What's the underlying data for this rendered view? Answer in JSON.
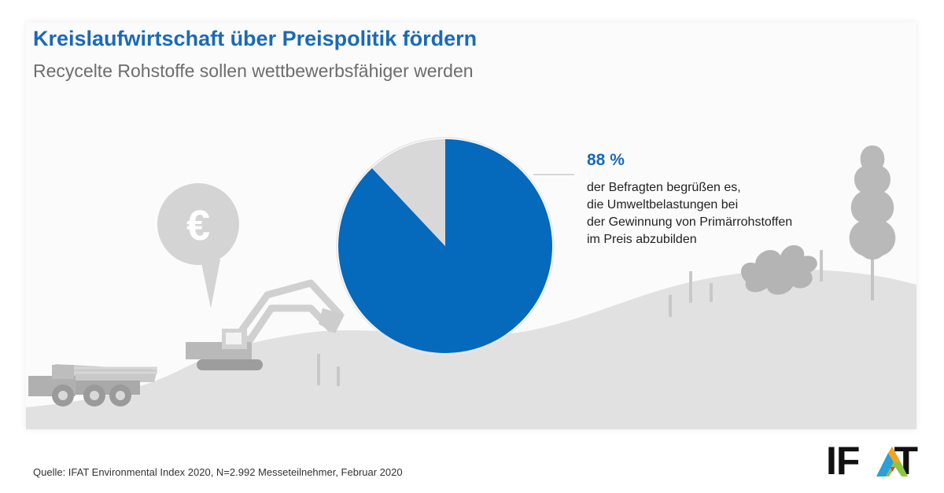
{
  "title": "Kreislaufwirtschaft über Preispolitik fördern",
  "subtitle": "Recycelte Rohstoffe sollen wettbewerbsfähiger werden",
  "chart_data": {
    "type": "pie",
    "title": "Kreislaufwirtschaft über Preispolitik fördern",
    "subtitle": "Recycelte Rohstoffe sollen wettbewerbsfähiger werden",
    "values": [
      88,
      12
    ],
    "colors": [
      "#0569bc",
      "#d8d8d9"
    ],
    "annotation": {
      "value_label": "88 %",
      "lines": [
        "der Befragten begrüßen es,",
        "die Umweltbelastungen bei",
        "der Gewinnung von Primärrohstoffen",
        "im Preis abzubilden"
      ]
    }
  },
  "euro_symbol": "€",
  "source": "Quelle: IFAT Environmental Index 2020, N=2.992 Messeteilnehmer, Februar 2020",
  "logo": {
    "text_part": "IF",
    "last_letter": "T",
    "icon": "colorful-triangle-a-icon"
  }
}
